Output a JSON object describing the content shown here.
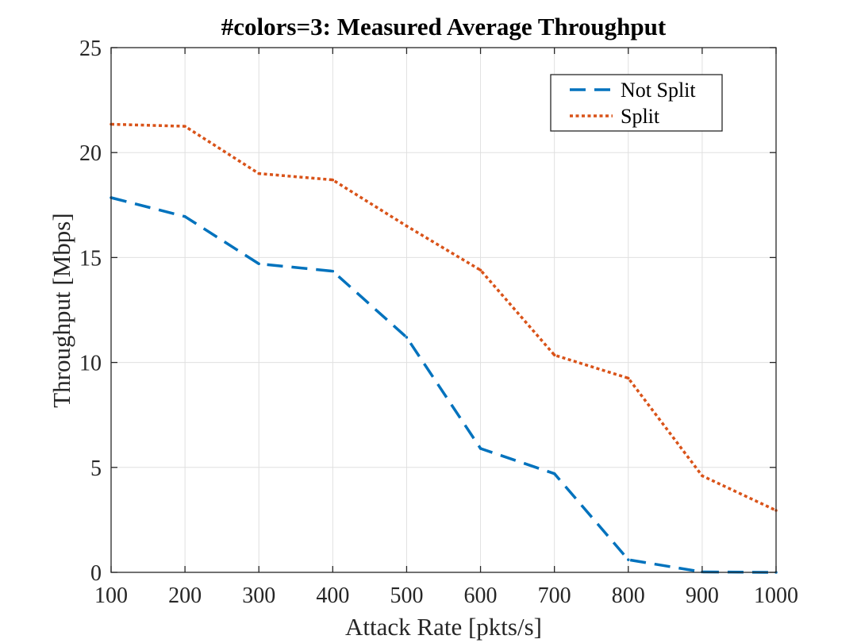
{
  "chart_data": {
    "type": "line",
    "title": "#colors=3: Measured Average Throughput",
    "xlabel": "Attack Rate [pkts/s]",
    "ylabel": "Throughput [Mbps]",
    "x": [
      100,
      200,
      300,
      400,
      500,
      600,
      700,
      800,
      900,
      1000
    ],
    "xlim": [
      100,
      1000
    ],
    "ylim": [
      0,
      25
    ],
    "xticks": [
      100,
      200,
      300,
      400,
      500,
      600,
      700,
      800,
      900,
      1000
    ],
    "yticks": [
      0,
      5,
      10,
      15,
      20,
      25
    ],
    "grid": true,
    "legend_position": "top-right",
    "series": [
      {
        "name": "Not Split",
        "color": "#0072bd",
        "style": "dashed",
        "values": [
          17.85,
          16.95,
          14.7,
          14.35,
          11.2,
          5.9,
          4.7,
          0.6,
          0.02,
          0.0
        ]
      },
      {
        "name": "Split",
        "color": "#d95319",
        "style": "dotted",
        "values": [
          21.35,
          21.25,
          19.0,
          18.7,
          16.5,
          14.4,
          10.35,
          9.25,
          4.6,
          2.95
        ]
      }
    ]
  }
}
